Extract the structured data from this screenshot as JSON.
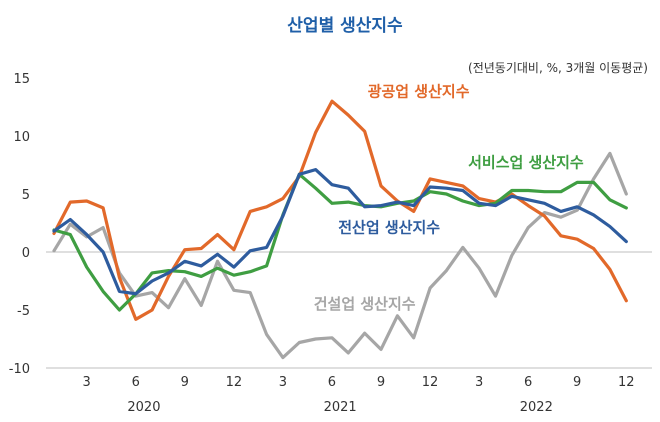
{
  "chart_data": {
    "type": "line",
    "title": "산업별 생산지수",
    "subtitle": "(전년동기대비, %, 3개월 이동평균)",
    "ylim": [
      -10,
      15
    ],
    "yticks": [
      "15",
      "10",
      "5",
      "0",
      "-5",
      "-10"
    ],
    "ytick_values": [
      15,
      10,
      5,
      0,
      -5,
      -10
    ],
    "x": [
      1,
      2,
      3,
      4,
      5,
      6,
      7,
      8,
      9,
      10,
      11,
      12,
      13,
      14,
      15,
      16,
      17,
      18,
      19,
      20,
      21,
      22,
      23,
      24,
      25,
      26,
      27,
      28,
      29,
      30,
      31,
      32,
      33,
      34,
      35,
      36
    ],
    "xticks": [
      {
        "pos": 3,
        "label": "3"
      },
      {
        "pos": 6,
        "label": "6"
      },
      {
        "pos": 9,
        "label": "9"
      },
      {
        "pos": 12,
        "label": "12"
      },
      {
        "pos": 15,
        "label": "3"
      },
      {
        "pos": 18,
        "label": "6"
      },
      {
        "pos": 21,
        "label": "9"
      },
      {
        "pos": 24,
        "label": "12"
      },
      {
        "pos": 27,
        "label": "3"
      },
      {
        "pos": 30,
        "label": "6"
      },
      {
        "pos": 33,
        "label": "9"
      },
      {
        "pos": 36,
        "label": "12"
      }
    ],
    "years": [
      {
        "center": 6.5,
        "label": "2020"
      },
      {
        "center": 18.5,
        "label": "2021"
      },
      {
        "center": 30.5,
        "label": "2022"
      }
    ],
    "grid": false,
    "series": [
      {
        "name": "광공업 생산지수",
        "color": "#e2692a",
        "values": [
          1.6,
          4.3,
          4.4,
          3.8,
          -2.2,
          -5.8,
          -5.0,
          -2.1,
          0.2,
          0.3,
          1.5,
          0.2,
          3.5,
          3.9,
          4.6,
          6.5,
          10.3,
          13.0,
          11.8,
          10.4,
          5.7,
          4.4,
          3.5,
          6.3,
          6.0,
          5.7,
          4.6,
          4.3,
          5.0,
          4.0,
          3.1,
          1.4,
          1.1,
          0.3,
          -1.5,
          -4.2
        ],
        "label": {
          "text": "광공업 생산지수",
          "x": 23.3,
          "y": 13.4,
          "anchor": "middle"
        }
      },
      {
        "name": "서비스업 생산지수",
        "color": "#3f9e42",
        "values": [
          1.9,
          1.5,
          -1.3,
          -3.4,
          -5.0,
          -3.6,
          -1.8,
          -1.6,
          -1.7,
          -2.1,
          -1.4,
          -2.0,
          -1.7,
          -1.2,
          3.2,
          6.7,
          5.5,
          4.2,
          4.3,
          4.0,
          3.9,
          4.2,
          4.4,
          5.2,
          5.0,
          4.4,
          4.0,
          4.2,
          5.3,
          5.3,
          5.2,
          5.2,
          6.0,
          6.0,
          4.5,
          3.8
        ],
        "label": {
          "text": "서비스업 생산지수",
          "x": 33.4,
          "y": 7.3,
          "anchor": "end"
        }
      },
      {
        "name": "전산업 생산지수",
        "color": "#2e5c9e",
        "values": [
          1.8,
          2.8,
          1.5,
          0.0,
          -3.4,
          -3.6,
          -2.5,
          -1.8,
          -0.8,
          -1.2,
          -0.2,
          -1.3,
          0.1,
          0.4,
          3.1,
          6.7,
          7.1,
          5.8,
          5.5,
          3.9,
          4.0,
          4.3,
          4.0,
          5.6,
          5.5,
          5.3,
          4.2,
          4.0,
          4.8,
          4.5,
          4.2,
          3.5,
          3.9,
          3.2,
          2.2,
          0.9
        ],
        "label": {
          "text": "전산업 생산지수",
          "x": 21.5,
          "y": 1.7,
          "anchor": "middle"
        }
      },
      {
        "name": "건설업 생산지수",
        "color": "#a6a6a6",
        "values": [
          0.1,
          2.4,
          1.3,
          2.1,
          -1.8,
          -3.8,
          -3.5,
          -4.8,
          -2.3,
          -4.6,
          -0.8,
          -3.3,
          -3.5,
          -7.1,
          -9.1,
          -7.8,
          -7.5,
          -7.4,
          -8.7,
          -7.0,
          -8.4,
          -5.5,
          -7.4,
          -3.1,
          -1.6,
          0.4,
          -1.4,
          -3.8,
          -0.3,
          2.1,
          3.4,
          3.0,
          3.6,
          6.3,
          8.5,
          5.0
        ],
        "label": {
          "text": "건설업 생산지수",
          "x": 20.0,
          "y": -4.9,
          "anchor": "middle"
        }
      }
    ]
  }
}
